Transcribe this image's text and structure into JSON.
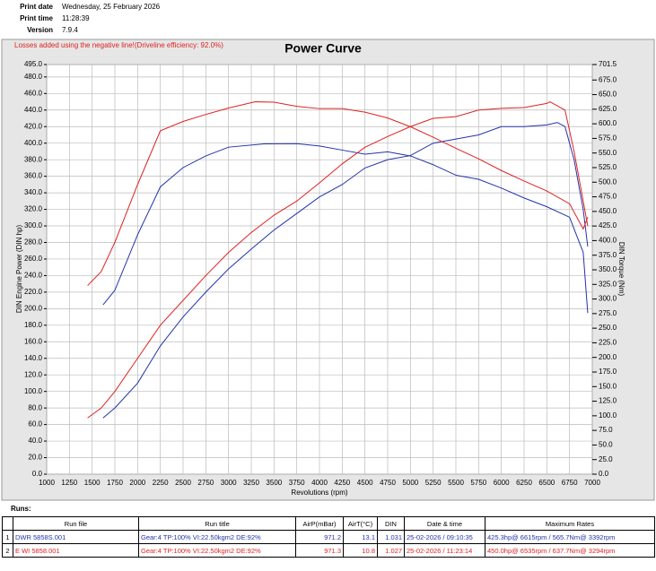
{
  "header": {
    "rows": [
      [
        "Print date",
        "Wednesday, 25 February 2026"
      ],
      [
        "Print time",
        "11:28:39"
      ],
      [
        "Version",
        "7.9.4"
      ]
    ]
  },
  "chart_data": {
    "type": "line",
    "title": "Power Curve",
    "note": "Losses added using the negative line!(Driveline efficiency: 92.0%)",
    "x_label": "Revolutions (rpm)",
    "y_label": "DIN Engine Power (DIN hp)",
    "y2_label": "DIN Torque (Nm)",
    "xlim": [
      1000,
      7000
    ],
    "ylim": [
      0,
      495
    ],
    "y2lim": [
      0,
      701.5
    ],
    "grid": true,
    "xticks": [
      1000,
      1250,
      1500,
      1750,
      2000,
      2250,
      2500,
      2750,
      3000,
      3250,
      3500,
      3750,
      4000,
      4250,
      4500,
      4750,
      5000,
      5250,
      5500,
      5750,
      6000,
      6250,
      6500,
      6750,
      7000
    ],
    "yticks": [
      {
        "value": 0,
        "label": "0.0"
      },
      {
        "value": 20,
        "label": "20.0"
      },
      {
        "value": 40,
        "label": "40.0"
      },
      {
        "value": 60,
        "label": "60.0"
      },
      {
        "value": 80,
        "label": "80.0"
      },
      {
        "value": 100,
        "label": "100.0"
      },
      {
        "value": 120,
        "label": "120.0"
      },
      {
        "value": 140,
        "label": "140.0"
      },
      {
        "value": 160,
        "label": "160.0"
      },
      {
        "value": 180,
        "label": "180.0"
      },
      {
        "value": 200,
        "label": "200.0"
      },
      {
        "value": 220,
        "label": "220.0"
      },
      {
        "value": 240,
        "label": "240.0"
      },
      {
        "value": 260,
        "label": "260.0"
      },
      {
        "value": 280,
        "label": "280.0"
      },
      {
        "value": 300,
        "label": "300.0"
      },
      {
        "value": 320,
        "label": "320.0"
      },
      {
        "value": 340,
        "label": "340.0"
      },
      {
        "value": 360,
        "label": "360.0"
      },
      {
        "value": 380,
        "label": "380.0"
      },
      {
        "value": 400,
        "label": "400.0"
      },
      {
        "value": 420,
        "label": "420.0"
      },
      {
        "value": 440,
        "label": "440.0"
      },
      {
        "value": 460,
        "label": "460.0"
      },
      {
        "value": 480,
        "label": "480.0"
      },
      {
        "value": 495,
        "label": "495.0"
      }
    ],
    "y2ticks": [
      {
        "value": 0,
        "label": "0.0"
      },
      {
        "value": 25,
        "label": "25.0"
      },
      {
        "value": 50,
        "label": "50.0"
      },
      {
        "value": 75,
        "label": "75.0"
      },
      {
        "value": 100,
        "label": "100.0"
      },
      {
        "value": 125,
        "label": "125.0"
      },
      {
        "value": 150,
        "label": "150.0"
      },
      {
        "value": 175,
        "label": "175.0"
      },
      {
        "value": 200,
        "label": "200.0"
      },
      {
        "value": 225,
        "label": "225.0"
      },
      {
        "value": 250,
        "label": "250.0"
      },
      {
        "value": 275,
        "label": "275.0"
      },
      {
        "value": 300,
        "label": "300.0"
      },
      {
        "value": 325,
        "label": "325.0"
      },
      {
        "value": 350,
        "label": "350.0"
      },
      {
        "value": 375,
        "label": "375.0"
      },
      {
        "value": 400,
        "label": "400.0"
      },
      {
        "value": 425,
        "label": "425.0"
      },
      {
        "value": 450,
        "label": "450.0"
      },
      {
        "value": 475,
        "label": "475.0"
      },
      {
        "value": 500,
        "label": "500.0"
      },
      {
        "value": 525,
        "label": "525.0"
      },
      {
        "value": 550,
        "label": "550.0"
      },
      {
        "value": 575,
        "label": "575.0"
      },
      {
        "value": 600,
        "label": "600.0"
      },
      {
        "value": 625,
        "label": "625.0"
      },
      {
        "value": 650,
        "label": "650.0"
      },
      {
        "value": 675,
        "label": "675.0"
      },
      {
        "value": 701.5,
        "label": "701.5"
      }
    ],
    "series": [
      {
        "color": "#2233aa",
        "axis": "y",
        "x": [
          1620,
          1750,
          2000,
          2250,
          2500,
          2750,
          3000,
          3250,
          3500,
          3750,
          4000,
          4250,
          4500,
          4750,
          5000,
          5250,
          5500,
          5750,
          6000,
          6250,
          6500,
          6615,
          6700,
          6800,
          6900,
          6950
        ],
        "values": [
          68,
          80,
          110,
          155,
          190,
          220,
          248,
          272,
          295,
          315,
          335,
          350,
          370,
          380,
          385,
          400,
          405,
          410,
          420,
          420,
          422,
          425,
          420,
          380,
          320,
          275
        ]
      },
      {
        "color": "#2233aa",
        "axis": "y2",
        "x": [
          1620,
          1750,
          2000,
          2250,
          2500,
          2750,
          3000,
          3392,
          3750,
          4000,
          4250,
          4500,
          4750,
          5000,
          5250,
          5500,
          5750,
          6000,
          6250,
          6500,
          6750,
          6900,
          6950
        ],
        "values": [
          290,
          315,
          410,
          492,
          525,
          545,
          560,
          565.7,
          566,
          562,
          555,
          548,
          552,
          545,
          530,
          512,
          505,
          490,
          473,
          458,
          440,
          380,
          276
        ]
      },
      {
        "color": "#dd2222",
        "axis": "y",
        "x": [
          1450,
          1600,
          1750,
          2000,
          2250,
          2500,
          2750,
          3000,
          3250,
          3500,
          3750,
          4000,
          4250,
          4500,
          4750,
          5000,
          5250,
          5500,
          5750,
          6000,
          6250,
          6500,
          6535,
          6700,
          6800,
          6900,
          6950
        ],
        "values": [
          68,
          80,
          100,
          140,
          180,
          210,
          240,
          268,
          292,
          313,
          330,
          352,
          375,
          395,
          408,
          420,
          430,
          432,
          440,
          442,
          443,
          448,
          450,
          440,
          390,
          330,
          300
        ]
      },
      {
        "color": "#dd2222",
        "axis": "y2",
        "x": [
          1450,
          1600,
          1750,
          2000,
          2250,
          2500,
          2750,
          3000,
          3294,
          3500,
          3750,
          4000,
          4250,
          4500,
          4750,
          5000,
          5250,
          5500,
          5750,
          6000,
          6250,
          6500,
          6750,
          6900,
          6950
        ],
        "values": [
          323,
          347,
          397,
          496,
          588,
          604,
          616,
          627,
          637.7,
          637,
          630,
          626,
          626,
          620,
          610,
          595,
          577,
          558,
          540,
          520,
          502,
          485,
          463,
          420,
          440
        ]
      }
    ]
  },
  "table": {
    "title": "Runs:",
    "columns": [
      "",
      "Run file",
      "Run title",
      "AirP(mBar)",
      "AirT(°C)",
      "DIN",
      "Date & time",
      "Maximum Rates"
    ],
    "rows": [
      [
        "1",
        "DWR 5858S.001",
        "Gear:4 TP:100% VI:22.50kgm2 DE:92%",
        "971.2",
        "13.1",
        "1.031",
        "25-02-2026 / 09:10:35",
        "425.3hp@ 6615rpm / 565.7Nm@ 3392rpm"
      ],
      [
        "2",
        "E WI 5858.001",
        "Gear:4 TP:100% VI:22.50kgm2 DE:92%",
        "971.3",
        "10.8",
        "1.027",
        "25-02-2026 / 11:23:14",
        "450.0hp@ 6535rpm / 637.7Nm@ 3294rpm"
      ]
    ]
  }
}
